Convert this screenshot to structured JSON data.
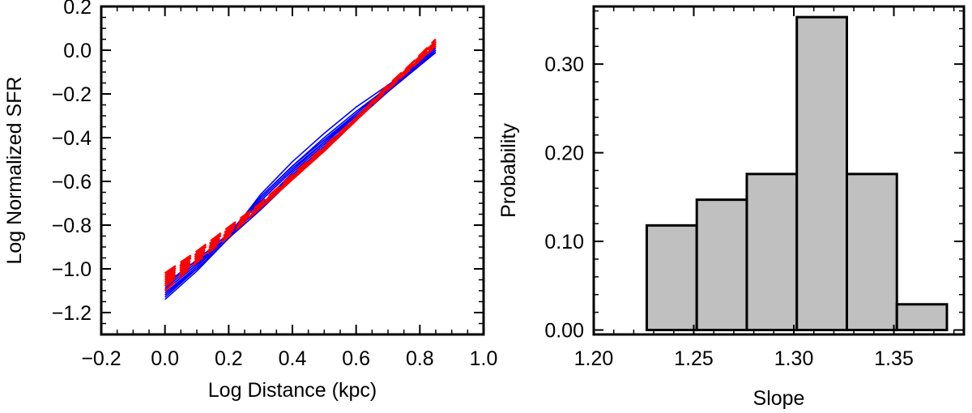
{
  "chart_data": [
    {
      "type": "line",
      "title": "",
      "xlabel": "Log Distance (kpc)",
      "ylabel": "Log Normalized SFR",
      "xlim": [
        -0.2,
        1.0
      ],
      "ylim": [
        -1.3,
        0.2
      ],
      "xticks": [
        -0.2,
        0.0,
        0.2,
        0.4,
        0.6,
        0.8,
        1.0
      ],
      "xtick_labels": [
        "−0.2",
        "0.0",
        "0.2",
        "0.4",
        "0.6",
        "0.8",
        "1.0"
      ],
      "yticks": [
        -1.2,
        -1.0,
        -0.8,
        -0.6,
        -0.4,
        -0.2,
        0.0,
        0.2
      ],
      "ytick_labels": [
        "−1.2",
        "−1.0",
        "−0.8",
        "−0.6",
        "−0.4",
        "−0.2",
        "0.0",
        "0.2"
      ],
      "grid": false,
      "colors": {
        "solid": "#0000ff",
        "dashed": "#ff0000",
        "axes": "#000000"
      },
      "x": [
        0.0,
        0.1,
        0.2,
        0.3,
        0.4,
        0.5,
        0.6,
        0.7,
        0.85
      ],
      "series": [
        {
          "style": "solid",
          "values": [
            -1.14,
            -1.01,
            -0.86,
            -0.71,
            -0.56,
            -0.43,
            -0.3,
            -0.18,
            0.0
          ]
        },
        {
          "style": "solid",
          "values": [
            -1.13,
            -1.0,
            -0.86,
            -0.71,
            -0.57,
            -0.44,
            -0.31,
            -0.19,
            -0.01
          ]
        },
        {
          "style": "solid",
          "values": [
            -1.12,
            -0.99,
            -0.85,
            -0.69,
            -0.55,
            -0.42,
            -0.3,
            -0.18,
            0.0
          ]
        },
        {
          "style": "solid",
          "values": [
            -1.11,
            -0.99,
            -0.85,
            -0.66,
            -0.51,
            -0.38,
            -0.26,
            -0.16,
            0.01
          ]
        },
        {
          "style": "solid",
          "values": [
            -1.1,
            -0.98,
            -0.85,
            -0.67,
            -0.53,
            -0.4,
            -0.28,
            -0.17,
            0.0
          ]
        },
        {
          "style": "solid",
          "values": [
            -1.09,
            -0.97,
            -0.85,
            -0.68,
            -0.54,
            -0.42,
            -0.29,
            -0.17,
            -0.01
          ]
        },
        {
          "style": "solid",
          "values": [
            -1.08,
            -0.96,
            -0.84,
            -0.67,
            -0.53,
            -0.41,
            -0.29,
            -0.17,
            0.0
          ]
        },
        {
          "style": "solid",
          "values": [
            -1.07,
            -0.96,
            -0.84,
            -0.69,
            -0.55,
            -0.42,
            -0.3,
            -0.18,
            0.0
          ]
        },
        {
          "style": "solid",
          "values": [
            -1.12,
            -1.0,
            -0.86,
            -0.73,
            -0.59,
            -0.46,
            -0.32,
            -0.19,
            0.0
          ]
        },
        {
          "style": "solid",
          "values": [
            -1.1,
            -0.98,
            -0.85,
            -0.72,
            -0.58,
            -0.45,
            -0.31,
            -0.18,
            0.01
          ]
        },
        {
          "style": "dashed",
          "values": [
            -1.07,
            -0.96,
            -0.84,
            -0.71,
            -0.58,
            -0.45,
            -0.31,
            -0.17,
            0.04
          ]
        },
        {
          "style": "dashed",
          "values": [
            -1.05,
            -0.94,
            -0.83,
            -0.71,
            -0.58,
            -0.45,
            -0.31,
            -0.17,
            0.03
          ]
        },
        {
          "style": "dashed",
          "values": [
            -1.03,
            -0.93,
            -0.82,
            -0.7,
            -0.58,
            -0.45,
            -0.31,
            -0.17,
            0.05
          ]
        },
        {
          "style": "dashed",
          "values": [
            -1.02,
            -0.92,
            -0.81,
            -0.7,
            -0.57,
            -0.44,
            -0.31,
            -0.16,
            0.04
          ]
        },
        {
          "style": "dashed",
          "values": [
            -1.04,
            -0.93,
            -0.82,
            -0.71,
            -0.58,
            -0.45,
            -0.31,
            -0.17,
            0.02
          ]
        },
        {
          "style": "dashed",
          "values": [
            -1.06,
            -0.95,
            -0.83,
            -0.72,
            -0.59,
            -0.46,
            -0.32,
            -0.17,
            0.04
          ]
        },
        {
          "style": "dashed",
          "values": [
            -1.08,
            -0.96,
            -0.84,
            -0.72,
            -0.59,
            -0.46,
            -0.32,
            -0.18,
            0.03
          ]
        },
        {
          "style": "dashed",
          "values": [
            -1.1,
            -0.97,
            -0.85,
            -0.72,
            -0.59,
            -0.46,
            -0.32,
            -0.18,
            0.02
          ]
        }
      ]
    },
    {
      "type": "bar",
      "title": "",
      "xlabel": "Slope",
      "ylabel": "Probability",
      "xlim": [
        1.2,
        1.385
      ],
      "ylim": [
        -0.005,
        0.365
      ],
      "xticks": [
        1.2,
        1.25,
        1.3,
        1.35
      ],
      "xtick_labels": [
        "1.20",
        "1.25",
        "1.30",
        "1.35"
      ],
      "yticks": [
        0.0,
        0.1,
        0.2,
        0.3
      ],
      "ytick_labels": [
        "0.00",
        "0.10",
        "0.20",
        "0.30"
      ],
      "grid": false,
      "colors": {
        "bar_fill": "#c0c0c0",
        "bar_edge": "#000000",
        "axes": "#000000"
      },
      "bins": [
        {
          "left": 1.2265,
          "right": 1.2515,
          "value": 0.118
        },
        {
          "left": 1.2515,
          "right": 1.2765,
          "value": 0.147
        },
        {
          "left": 1.2765,
          "right": 1.3015,
          "value": 0.176
        },
        {
          "left": 1.3015,
          "right": 1.3265,
          "value": 0.353
        },
        {
          "left": 1.3265,
          "right": 1.3515,
          "value": 0.176
        },
        {
          "left": 1.3515,
          "right": 1.3765,
          "value": 0.029
        }
      ]
    }
  ]
}
